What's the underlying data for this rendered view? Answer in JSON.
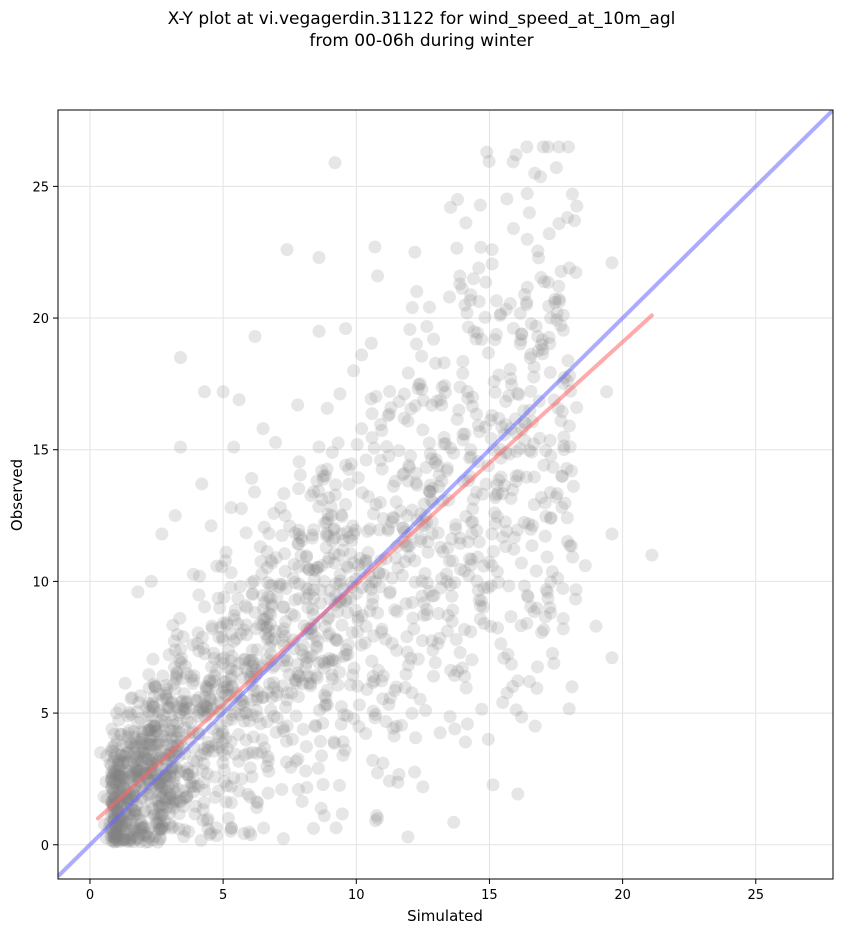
{
  "chart_data": {
    "type": "scatter",
    "title_line1": "X-Y plot at vi.vegagerdin.31122 for wind_speed_at_10m_agl",
    "title_line2": "from 00-06h during winter",
    "xlabel": "Simulated",
    "ylabel": "Observed",
    "xlim": [
      -1.2,
      27.9
    ],
    "ylim": [
      -1.3,
      27.9
    ],
    "xticks": [
      0,
      5,
      10,
      15,
      20,
      25
    ],
    "yticks": [
      0,
      5,
      10,
      15,
      20,
      25
    ],
    "grid": true,
    "point_color": "#808080",
    "identity_line": {
      "x": [
        -1.2,
        27.9
      ],
      "y": [
        -1.2,
        27.9
      ],
      "color": "#6666ff"
    },
    "regression_line": {
      "x": [
        0.3,
        21.1
      ],
      "y": [
        1.0,
        20.1
      ],
      "color": "#ff6666"
    },
    "points_sample": [
      [
        9.2,
        25.9
      ],
      [
        14.9,
        26.3
      ],
      [
        16.0,
        26.2
      ],
      [
        17.2,
        26.5
      ],
      [
        13.8,
        24.5
      ],
      [
        10.7,
        22.7
      ],
      [
        7.4,
        22.6
      ],
      [
        8.6,
        22.3
      ],
      [
        12.2,
        22.5
      ],
      [
        10.8,
        21.6
      ],
      [
        16.7,
        25.5
      ],
      [
        16.5,
        24.0
      ],
      [
        18.0,
        21.9
      ],
      [
        19.6,
        22.1
      ],
      [
        17.3,
        20.0
      ],
      [
        6.2,
        19.3
      ],
      [
        8.6,
        19.5
      ],
      [
        9.6,
        19.6
      ],
      [
        10.2,
        18.6
      ],
      [
        9.9,
        18.0
      ],
      [
        3.4,
        18.5
      ],
      [
        4.3,
        17.2
      ],
      [
        5.0,
        17.2
      ],
      [
        5.6,
        16.9
      ],
      [
        7.8,
        16.7
      ],
      [
        6.5,
        15.8
      ],
      [
        3.4,
        15.1
      ],
      [
        14.0,
        17.9
      ],
      [
        19.4,
        17.2
      ],
      [
        18.0,
        15.9
      ],
      [
        13.1,
        13.6
      ],
      [
        17.5,
        13.2
      ],
      [
        19.6,
        11.8
      ],
      [
        21.1,
        11.0
      ],
      [
        16.2,
        10.7
      ],
      [
        18.6,
        10.6
      ],
      [
        17.3,
        8.8
      ],
      [
        19.0,
        8.3
      ],
      [
        18.1,
        6.0
      ],
      [
        19.6,
        7.1
      ],
      [
        15.5,
        5.4
      ],
      [
        16.5,
        6.2
      ],
      [
        12.5,
        2.2
      ],
      [
        10.8,
        1.0
      ],
      [
        8.8,
        1.1
      ],
      [
        0.4,
        3.5
      ],
      [
        1.0,
        5.0
      ],
      [
        1.8,
        9.6
      ],
      [
        2.3,
        10.0
      ],
      [
        2.7,
        11.8
      ],
      [
        3.2,
        12.5
      ],
      [
        4.2,
        13.7
      ],
      [
        5.3,
        12.8
      ],
      [
        5.4,
        15.1
      ],
      [
        7.1,
        9.8
      ],
      [
        8.3,
        8.2
      ],
      [
        9.4,
        9.3
      ],
      [
        10.5,
        10.2
      ],
      [
        11.2,
        12.0
      ],
      [
        12.8,
        13.1
      ],
      [
        13.4,
        14.2
      ],
      [
        14.3,
        15.0
      ],
      [
        15.1,
        16.3
      ],
      [
        15.8,
        17.7
      ],
      [
        16.2,
        19.4
      ],
      [
        12.9,
        19.2
      ],
      [
        13.5,
        20.8
      ],
      [
        14.6,
        21.9
      ],
      [
        15.1,
        22.6
      ],
      [
        15.9,
        23.4
      ],
      [
        4.1,
        4.2
      ],
      [
        3.6,
        5.2
      ],
      [
        2.5,
        3.3
      ],
      [
        1.6,
        2.0
      ],
      [
        1.2,
        0.7
      ],
      [
        2.9,
        1.4
      ],
      [
        4.4,
        2.7
      ],
      [
        5.3,
        3.9
      ],
      [
        6.4,
        4.6
      ],
      [
        7.4,
        5.5
      ],
      [
        6.1,
        7.0
      ],
      [
        5.1,
        6.2
      ],
      [
        8.0,
        7.2
      ],
      [
        9.1,
        6.3
      ],
      [
        10.4,
        5.9
      ],
      [
        11.5,
        4.5
      ],
      [
        12.6,
        5.1
      ],
      [
        13.7,
        4.4
      ],
      [
        14.1,
        3.9
      ],
      [
        11.0,
        3.1
      ],
      [
        9.5,
        3.4
      ],
      [
        8.1,
        2.8
      ],
      [
        7.2,
        2.1
      ],
      [
        6.3,
        1.6
      ],
      [
        5.2,
        1.0
      ],
      [
        3.7,
        0.5
      ],
      [
        2.2,
        0.3
      ],
      [
        1.3,
        0.2
      ],
      [
        0.9,
        1.5
      ],
      [
        1.9,
        4.0
      ],
      [
        2.4,
        6.1
      ],
      [
        3.5,
        7.9
      ],
      [
        4.6,
        8.2
      ],
      [
        5.9,
        9.0
      ],
      [
        6.8,
        10.8
      ],
      [
        7.5,
        12.1
      ],
      [
        8.4,
        13.4
      ],
      [
        9.1,
        14.9
      ],
      [
        10.2,
        15.8
      ],
      [
        11.3,
        16.6
      ],
      [
        12.4,
        17.5
      ],
      [
        13.3,
        18.3
      ],
      [
        14.5,
        19.2
      ],
      [
        15.4,
        20.1
      ],
      [
        16.4,
        20.6
      ],
      [
        11.8,
        14.1
      ],
      [
        10.9,
        13.0
      ],
      [
        9.9,
        11.8
      ],
      [
        8.7,
        10.6
      ],
      [
        7.7,
        9.3
      ],
      [
        6.6,
        8.0
      ],
      [
        5.5,
        6.6
      ],
      [
        4.5,
        5.5
      ],
      [
        3.3,
        4.6
      ],
      [
        2.1,
        2.7
      ],
      [
        12.1,
        9.2
      ],
      [
        13.2,
        10.1
      ],
      [
        14.2,
        11.5
      ],
      [
        15.2,
        12.6
      ],
      [
        16.0,
        13.8
      ],
      [
        14.8,
        8.4
      ],
      [
        13.9,
        7.3
      ],
      [
        12.9,
        6.4
      ],
      [
        11.9,
        7.9
      ],
      [
        10.8,
        8.8
      ],
      [
        9.7,
        7.6
      ],
      [
        8.6,
        6.9
      ],
      [
        7.6,
        4.0
      ],
      [
        6.7,
        3.2
      ],
      [
        5.7,
        2.5
      ],
      [
        4.7,
        1.8
      ],
      [
        3.8,
        2.2
      ],
      [
        2.8,
        0.9
      ],
      [
        1.7,
        0.6
      ],
      [
        0.8,
        2.4
      ]
    ]
  }
}
